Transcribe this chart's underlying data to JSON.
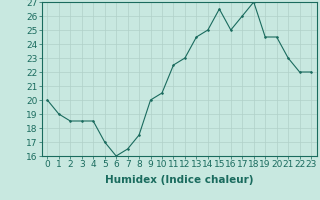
{
  "x": [
    0,
    1,
    2,
    3,
    4,
    5,
    6,
    7,
    8,
    9,
    10,
    11,
    12,
    13,
    14,
    15,
    16,
    17,
    18,
    19,
    20,
    21,
    22,
    23
  ],
  "y": [
    20,
    19,
    18.5,
    18.5,
    18.5,
    17,
    16,
    16.5,
    17.5,
    20,
    20.5,
    22.5,
    23,
    24.5,
    25,
    26.5,
    25,
    26,
    27,
    24.5,
    24.5,
    23,
    22,
    22
  ],
  "line_color": "#1a6b5e",
  "marker_color": "#1a6b5e",
  "bg_color": "#c8e8e0",
  "grid_color": "#b0d0c8",
  "xlabel": "Humidex (Indice chaleur)",
  "ylim": [
    16,
    27
  ],
  "xlim_min": -0.5,
  "xlim_max": 23.5,
  "yticks": [
    16,
    17,
    18,
    19,
    20,
    21,
    22,
    23,
    24,
    25,
    26,
    27
  ],
  "xticks": [
    0,
    1,
    2,
    3,
    4,
    5,
    6,
    7,
    8,
    9,
    10,
    11,
    12,
    13,
    14,
    15,
    16,
    17,
    18,
    19,
    20,
    21,
    22,
    23
  ],
  "xlabel_fontsize": 7.5,
  "tick_fontsize": 6.5
}
